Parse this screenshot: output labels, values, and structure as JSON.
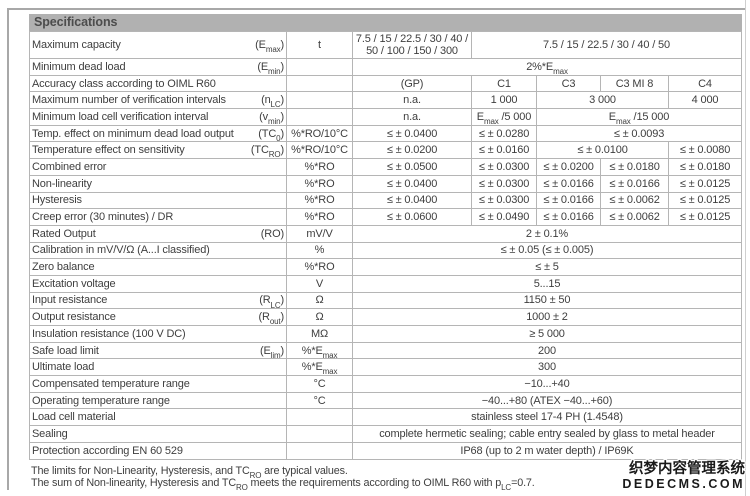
{
  "page": {
    "title": "Specifications",
    "footnotes": [
      "The limits for Non-Linearity, Hysteresis, and TC_{RO} are typical values.",
      "The sum of Non-linearity, Hysteresis and TC_{RO} meets the requirements according to OIML R60 with p_{LC}=0.7."
    ],
    "watermark": {
      "line1": "织梦内容管理系统",
      "line2": "DEDECMS.COM"
    },
    "colors": {
      "header_bg": "#b1b1b1",
      "border": "#b5b5b5",
      "text": "#3e3e3e"
    }
  },
  "table": {
    "accuracy_classes": [
      "(GP)",
      "C1",
      "C3",
      "C3 MI 8",
      "C4"
    ],
    "rows": [
      {
        "label": "Maximum capacity",
        "symbol": "(E_{max})",
        "unit": "t",
        "cells": [
          {
            "text": "7.5 / 15 / 22.5 / 30 / 40 / 50 / 100 / 150 / 300",
            "span": 1
          },
          {
            "text": "7.5 / 15 / 22.5 / 30 / 40 / 50",
            "span": 4
          }
        ]
      },
      {
        "label": "Minimum dead load",
        "symbol": "(E_{min})",
        "unit": "",
        "cells": [
          {
            "text": "2%*E_{max}",
            "span": 5
          }
        ]
      },
      {
        "label": "Accuracy class according to OIML R60",
        "symbol": "",
        "unit": "",
        "cells": [
          {
            "text": "(GP)",
            "span": 1
          },
          {
            "text": "C1",
            "span": 1
          },
          {
            "text": "C3",
            "span": 1
          },
          {
            "text": "C3 MI 8",
            "span": 1
          },
          {
            "text": "C4",
            "span": 1
          }
        ]
      },
      {
        "label": "Maximum number of verification intervals",
        "symbol": "(n_{LC})",
        "unit": "",
        "cells": [
          {
            "text": "n.a.",
            "span": 1
          },
          {
            "text": "1 000",
            "span": 1
          },
          {
            "text": "3 000",
            "span": 2
          },
          {
            "text": "4 000",
            "span": 1
          }
        ]
      },
      {
        "label": "Minimum load cell verification interval",
        "symbol": "(v_{min})",
        "unit": "",
        "cells": [
          {
            "text": "n.a.",
            "span": 1
          },
          {
            "text": "E_{max} /5 000",
            "span": 1
          },
          {
            "text": "E_{max} /15 000",
            "span": 3
          }
        ]
      },
      {
        "label": "Temp. effect on minimum dead load output",
        "symbol": "(TC_{0})",
        "unit": "%*RO/10°C",
        "cells": [
          {
            "text": "≤ ± 0.0400",
            "span": 1
          },
          {
            "text": "≤ ± 0.0280",
            "span": 1
          },
          {
            "text": "≤ ± 0.0093",
            "span": 3
          }
        ]
      },
      {
        "label": "Temperature effect on sensitivity",
        "symbol": "(TC_{RO})",
        "unit": "%*RO/10°C",
        "cells": [
          {
            "text": "≤ ± 0.0200",
            "span": 1
          },
          {
            "text": "≤ ± 0.0160",
            "span": 1
          },
          {
            "text": "≤ ± 0.0100",
            "span": 2
          },
          {
            "text": "≤ ± 0.0080",
            "span": 1
          }
        ]
      },
      {
        "label": "Combined error",
        "symbol": "",
        "unit": "%*RO",
        "cells": [
          {
            "text": "≤ ± 0.0500",
            "span": 1
          },
          {
            "text": "≤ ± 0.0300",
            "span": 1
          },
          {
            "text": "≤ ± 0.0200",
            "span": 1
          },
          {
            "text": "≤ ± 0.0180",
            "span": 1
          },
          {
            "text": "≤ ± 0.0180",
            "span": 1
          }
        ]
      },
      {
        "label": "Non-linearity",
        "symbol": "",
        "unit": "%*RO",
        "cells": [
          {
            "text": "≤ ± 0.0400",
            "span": 1
          },
          {
            "text": "≤ ± 0.0300",
            "span": 1
          },
          {
            "text": "≤ ± 0.0166",
            "span": 1
          },
          {
            "text": "≤ ± 0.0166",
            "span": 1
          },
          {
            "text": "≤ ± 0.0125",
            "span": 1
          }
        ]
      },
      {
        "label": "Hysteresis",
        "symbol": "",
        "unit": "%*RO",
        "cells": [
          {
            "text": "≤ ± 0.0400",
            "span": 1
          },
          {
            "text": "≤ ± 0.0300",
            "span": 1
          },
          {
            "text": "≤ ± 0.0166",
            "span": 1
          },
          {
            "text": "≤ ± 0.0062",
            "span": 1
          },
          {
            "text": "≤ ± 0.0125",
            "span": 1
          }
        ]
      },
      {
        "label": "Creep error (30 minutes) / DR",
        "symbol": "",
        "unit": "%*RO",
        "cells": [
          {
            "text": "≤ ± 0.0600",
            "span": 1
          },
          {
            "text": "≤ ± 0.0490",
            "span": 1
          },
          {
            "text": "≤ ± 0.0166",
            "span": 1
          },
          {
            "text": "≤ ± 0.0062",
            "span": 1
          },
          {
            "text": "≤ ± 0.0125",
            "span": 1
          }
        ]
      },
      {
        "label": "Rated Output",
        "symbol": "(RO)",
        "unit": "mV/V",
        "cells": [
          {
            "text": "2 ± 0.1%",
            "span": 5
          }
        ]
      },
      {
        "label": "Calibration in mV/V/Ω (A...I classified)",
        "symbol": "",
        "unit": "%",
        "cells": [
          {
            "text": "≤ ± 0.05 (≤ ± 0.005)",
            "span": 5
          }
        ]
      },
      {
        "label": "Zero balance",
        "symbol": "",
        "unit": "%*RO",
        "cells": [
          {
            "text": "≤ ± 5",
            "span": 5
          }
        ]
      },
      {
        "label": "Excitation voltage",
        "symbol": "",
        "unit": "V",
        "cells": [
          {
            "text": "5...15",
            "span": 5
          }
        ]
      },
      {
        "label": "Input resistance",
        "symbol": "(R_{LC})",
        "unit": "Ω",
        "cells": [
          {
            "text": "1150 ± 50",
            "span": 5
          }
        ]
      },
      {
        "label": "Output resistance",
        "symbol": "(R_{out})",
        "unit": "Ω",
        "cells": [
          {
            "text": "1000 ± 2",
            "span": 5
          }
        ]
      },
      {
        "label": "Insulation resistance (100 V DC)",
        "symbol": "",
        "unit": "MΩ",
        "cells": [
          {
            "text": "≥ 5 000",
            "span": 5
          }
        ]
      },
      {
        "label": "Safe load limit",
        "symbol": "(E_{lim})",
        "unit": "%*E_{max}",
        "cells": [
          {
            "text": "200",
            "span": 5
          }
        ]
      },
      {
        "label": "Ultimate load",
        "symbol": "",
        "unit": "%*E_{max}",
        "cells": [
          {
            "text": "300",
            "span": 5
          }
        ]
      },
      {
        "label": "Compensated temperature range",
        "symbol": "",
        "unit": "°C",
        "cells": [
          {
            "text": "−10...+40",
            "span": 5
          }
        ]
      },
      {
        "label": "Operating temperature range",
        "symbol": "",
        "unit": "°C",
        "cells": [
          {
            "text": "−40...+80 (ATEX −40...+60)",
            "span": 5
          }
        ]
      },
      {
        "label": "Load cell material",
        "symbol": "",
        "unit": "",
        "cells": [
          {
            "text": "stainless steel 17-4 PH (1.4548)",
            "span": 5
          }
        ]
      },
      {
        "label": "Sealing",
        "symbol": "",
        "unit": "",
        "cells": [
          {
            "text": "complete hermetic sealing; cable entry sealed by glass to metal header",
            "span": 5
          }
        ]
      },
      {
        "label": "Protection according EN 60 529",
        "symbol": "",
        "unit": "",
        "cells": [
          {
            "text": "IP68 (up to 2 m water depth) / IP69K",
            "span": 5
          }
        ]
      }
    ]
  }
}
